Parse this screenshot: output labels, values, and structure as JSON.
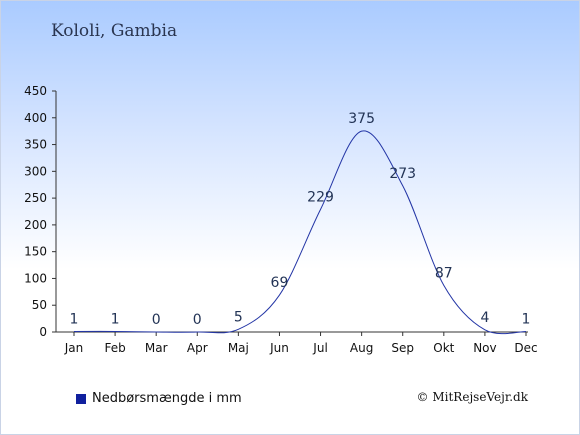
{
  "title": "Kololi, Gambia",
  "legend_label": "Nedbørsmængde i mm",
  "copyright": "© MitRejseVejr.dk",
  "colors": {
    "line": "#2436a6",
    "legend_swatch": "#10209e",
    "axis": "#333333",
    "label": "#223355"
  },
  "chart_data": {
    "type": "line",
    "categories": [
      "Jan",
      "Feb",
      "Mar",
      "Apr",
      "Maj",
      "Jun",
      "Jul",
      "Aug",
      "Sep",
      "Okt",
      "Nov",
      "Dec"
    ],
    "series": [
      {
        "name": "Nedbørsmængde i mm",
        "values": [
          1,
          1,
          0,
          0,
          5,
          69,
          229,
          375,
          273,
          87,
          4,
          1
        ]
      }
    ],
    "ylim": [
      0,
      450
    ],
    "yticks": [
      0,
      50,
      100,
      150,
      200,
      250,
      300,
      350,
      400,
      450
    ],
    "grid": false,
    "legend_position": "bottom-left"
  }
}
